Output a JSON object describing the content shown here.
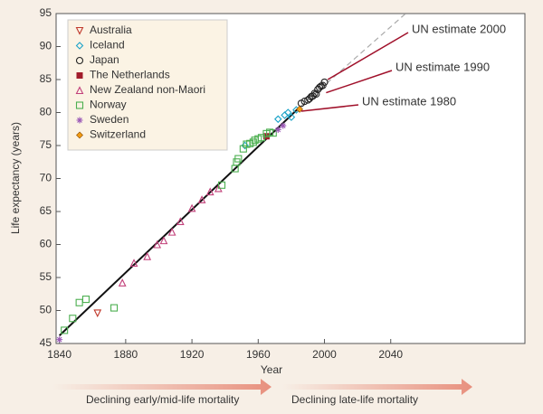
{
  "chart_data": {
    "type": "scatter",
    "xlabel": "Year",
    "ylabel": "Life expectancy (years)",
    "xlim": [
      1838,
      2121
    ],
    "ylim": [
      45,
      95
    ],
    "xticks": [
      1840,
      1880,
      1920,
      1960,
      2000,
      2040
    ],
    "yticks": [
      45,
      50,
      55,
      60,
      65,
      70,
      75,
      80,
      85,
      90,
      95
    ],
    "lines": [
      {
        "x": [
          1840,
          1985
        ],
        "values": [
          46.2,
          80.8
        ],
        "color": "#111111",
        "dash": false
      },
      {
        "x": [
          1985,
          2049
        ],
        "values": [
          80.8,
          95
        ],
        "color": "#aaaaaa",
        "dash": true
      }
    ],
    "series": [
      {
        "name": "Australia",
        "marker": "tri-down",
        "color": "#c0392b",
        "x": [
          1863
        ],
        "values": [
          49.6
        ]
      },
      {
        "name": "Iceland",
        "marker": "diamond",
        "color": "#1aa3c8",
        "x": [
          1952,
          1972,
          1976,
          1978,
          1980,
          1983
        ],
        "values": [
          75,
          79,
          79.6,
          80,
          79.3,
          80.4
        ]
      },
      {
        "name": "Japan",
        "marker": "circle",
        "color": "#222222",
        "x": [
          1986,
          1988,
          1990,
          1991,
          1992,
          1993,
          1994,
          1995,
          1996,
          1997,
          1998,
          1999,
          2000
        ],
        "values": [
          81.4,
          81.7,
          81.9,
          82.1,
          82.4,
          82.5,
          82.9,
          82.8,
          83.5,
          83.8,
          84,
          84.1,
          84.6
        ]
      },
      {
        "name": "The Netherlands",
        "marker": "square-fill",
        "color": "#a11d2b",
        "x": [
          1965
        ],
        "values": [
          76.4
        ]
      },
      {
        "name": "New Zealand non-Maori",
        "marker": "tri-up",
        "color": "#c2407a",
        "x": [
          1878,
          1885,
          1893,
          1899,
          1903,
          1908,
          1913,
          1920,
          1926,
          1931,
          1936
        ],
        "values": [
          54.2,
          57.2,
          58.2,
          60,
          60.6,
          61.9,
          63.5,
          65.5,
          66.8,
          68,
          68.5
        ]
      },
      {
        "name": "Norway",
        "marker": "square",
        "color": "#4caf50",
        "x": [
          1843,
          1848,
          1852,
          1856,
          1873,
          1938,
          1946,
          1947,
          1948,
          1951,
          1953,
          1955,
          1957,
          1958,
          1960,
          1962,
          1965,
          1967,
          1969
        ],
        "values": [
          47,
          48.8,
          51.2,
          51.7,
          50.4,
          69,
          71.5,
          72.5,
          73,
          74.5,
          75.2,
          75.3,
          75.5,
          75.8,
          76,
          76.2,
          76.8,
          77,
          76.9
        ]
      },
      {
        "name": "Sweden",
        "marker": "star",
        "color": "#9b59b6",
        "x": [
          1840,
          1972,
          1975
        ],
        "values": [
          45.6,
          77.4,
          78
        ]
      },
      {
        "name": "Switzerland",
        "marker": "diamond-fill",
        "color": "#f39c12",
        "x": [
          1985
        ],
        "values": [
          80.5
        ]
      }
    ],
    "annotations": [
      {
        "text": "UN estimate 2000",
        "x": 2002,
        "y": 85
      },
      {
        "text": "UN estimate 1990",
        "x": 2001,
        "y": 83
      },
      {
        "text": "UN estimate 1980",
        "x": 1986,
        "y": 80.2
      }
    ],
    "phases": [
      "Declining early/mid-life mortality",
      "Declining late-life mortality"
    ]
  }
}
